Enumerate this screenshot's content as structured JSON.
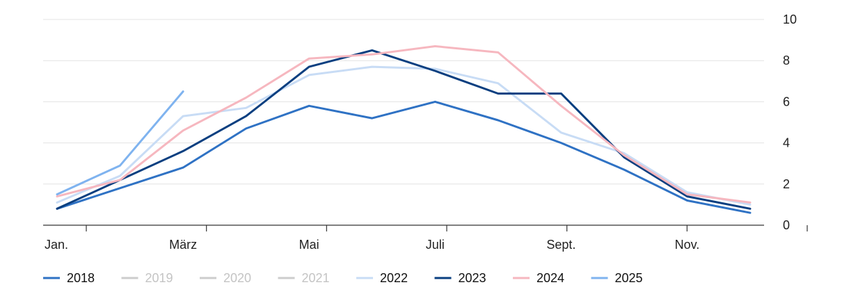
{
  "chart_data": {
    "type": "line",
    "title": "",
    "xlabel": "",
    "ylabel": "",
    "ylim": [
      0,
      10
    ],
    "y_ticks": [
      "0",
      "2",
      "4",
      "6",
      "8",
      "10"
    ],
    "y_axis_side": "right",
    "grid": "horizontal",
    "legend_position": "bottom-left",
    "months": 12,
    "x_tick_labels": [
      {
        "month": 1,
        "label": "Jan."
      },
      {
        "month": 3,
        "label": "März"
      },
      {
        "month": 5,
        "label": "Mai"
      },
      {
        "month": 7,
        "label": "Juli"
      },
      {
        "month": 9,
        "label": "Sept."
      },
      {
        "month": 11,
        "label": "Nov."
      }
    ],
    "series": [
      {
        "name": "2018",
        "color": "#2f72c4",
        "active": true,
        "values": [
          0.8,
          1.8,
          2.8,
          4.7,
          5.8,
          5.2,
          6.0,
          5.1,
          4.0,
          2.7,
          1.2,
          0.6
        ]
      },
      {
        "name": "2019",
        "color": "#cccccc",
        "active": false,
        "values": []
      },
      {
        "name": "2020",
        "color": "#cccccc",
        "active": false,
        "values": []
      },
      {
        "name": "2021",
        "color": "#cccccc",
        "active": false,
        "values": []
      },
      {
        "name": "2022",
        "color": "#c8dcf5",
        "active": true,
        "values": [
          1.1,
          2.4,
          5.3,
          5.7,
          7.3,
          7.7,
          7.6,
          6.9,
          4.5,
          3.5,
          1.6,
          1.0
        ]
      },
      {
        "name": "2023",
        "color": "#0a3f80",
        "active": true,
        "values": [
          0.8,
          2.2,
          3.6,
          5.3,
          7.7,
          8.5,
          7.5,
          6.4,
          6.4,
          3.3,
          1.4,
          0.8
        ]
      },
      {
        "name": "2024",
        "color": "#f6b7bf",
        "active": true,
        "values": [
          1.4,
          2.2,
          4.6,
          6.2,
          8.1,
          8.3,
          8.7,
          8.4,
          5.8,
          3.4,
          1.5,
          1.1
        ]
      },
      {
        "name": "2025",
        "color": "#7fb3ef",
        "active": true,
        "values": [
          1.5,
          2.9,
          6.5
        ]
      }
    ]
  }
}
